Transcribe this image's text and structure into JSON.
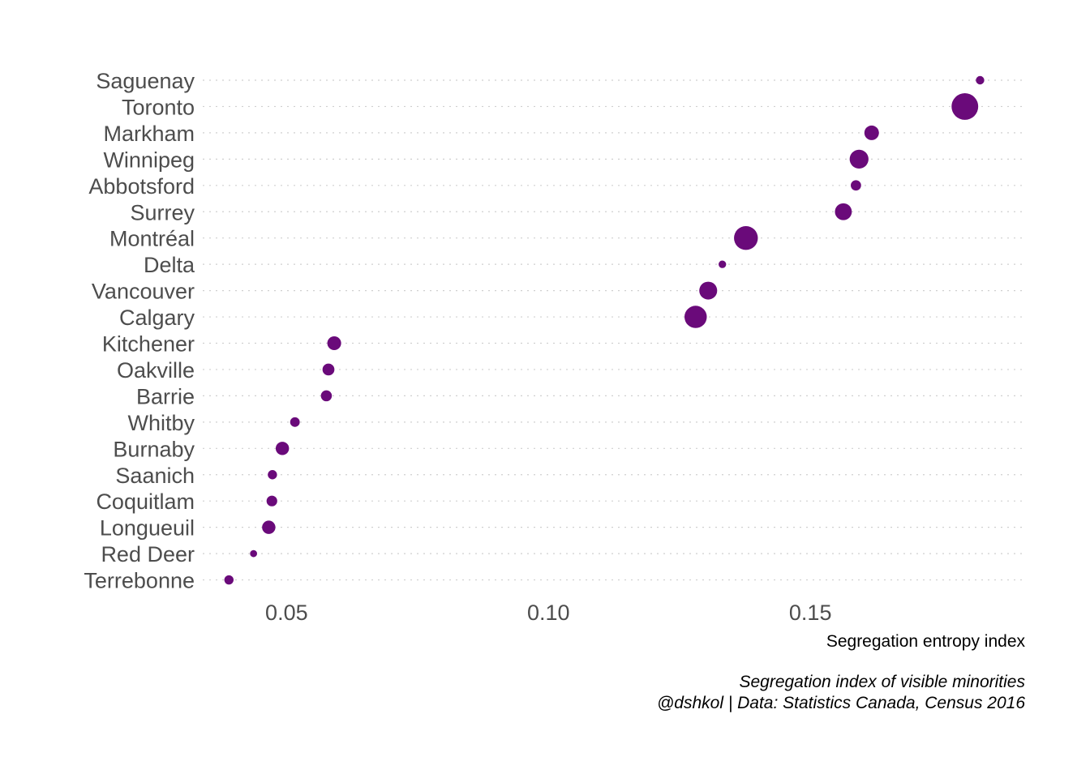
{
  "chart_data": {
    "type": "scatter",
    "title": "",
    "xlabel": "Segregation entropy index",
    "ylabel": "",
    "xlim": [
      0.034,
      0.191
    ],
    "x_ticks": [
      {
        "value": 0.05,
        "label": "0.05"
      },
      {
        "value": 0.1,
        "label": "0.10"
      },
      {
        "value": 0.15,
        "label": "0.15"
      }
    ],
    "grid": "horizontal dotted",
    "legend": "none",
    "point_color": "#6a0a7a",
    "caption_lines": [
      "Segregation index of visible minorities",
      "@dshkol | Data: Statistics Canada, Census 2016"
    ],
    "points": [
      {
        "city": "Saguenay",
        "x": 0.1824,
        "size": 1
      },
      {
        "city": "Toronto",
        "x": 0.1795,
        "size": 10
      },
      {
        "city": "Markham",
        "x": 0.1617,
        "size": 3
      },
      {
        "city": "Winnipeg",
        "x": 0.1593,
        "size": 5
      },
      {
        "city": "Abbotsford",
        "x": 0.1587,
        "size": 1.5
      },
      {
        "city": "Surrey",
        "x": 0.1563,
        "size": 4
      },
      {
        "city": "Montréal",
        "x": 0.1377,
        "size": 8
      },
      {
        "city": "Delta",
        "x": 0.1332,
        "size": 0.8
      },
      {
        "city": "Vancouver",
        "x": 0.1305,
        "size": 4.5
      },
      {
        "city": "Calgary",
        "x": 0.1281,
        "size": 7
      },
      {
        "city": "Kitchener",
        "x": 0.0591,
        "size": 2.7
      },
      {
        "city": "Oakville",
        "x": 0.058,
        "size": 2
      },
      {
        "city": "Barrie",
        "x": 0.0576,
        "size": 1.7
      },
      {
        "city": "Whitby",
        "x": 0.0516,
        "size": 1.3
      },
      {
        "city": "Burnaby",
        "x": 0.0492,
        "size": 2.5
      },
      {
        "city": "Saanich",
        "x": 0.0473,
        "size": 1.2
      },
      {
        "city": "Coquitlam",
        "x": 0.0472,
        "size": 1.6
      },
      {
        "city": "Longueuil",
        "x": 0.0466,
        "size": 2.5
      },
      {
        "city": "Red Deer",
        "x": 0.0437,
        "size": 0.7
      },
      {
        "city": "Terrebonne",
        "x": 0.039,
        "size": 1.2
      }
    ]
  }
}
